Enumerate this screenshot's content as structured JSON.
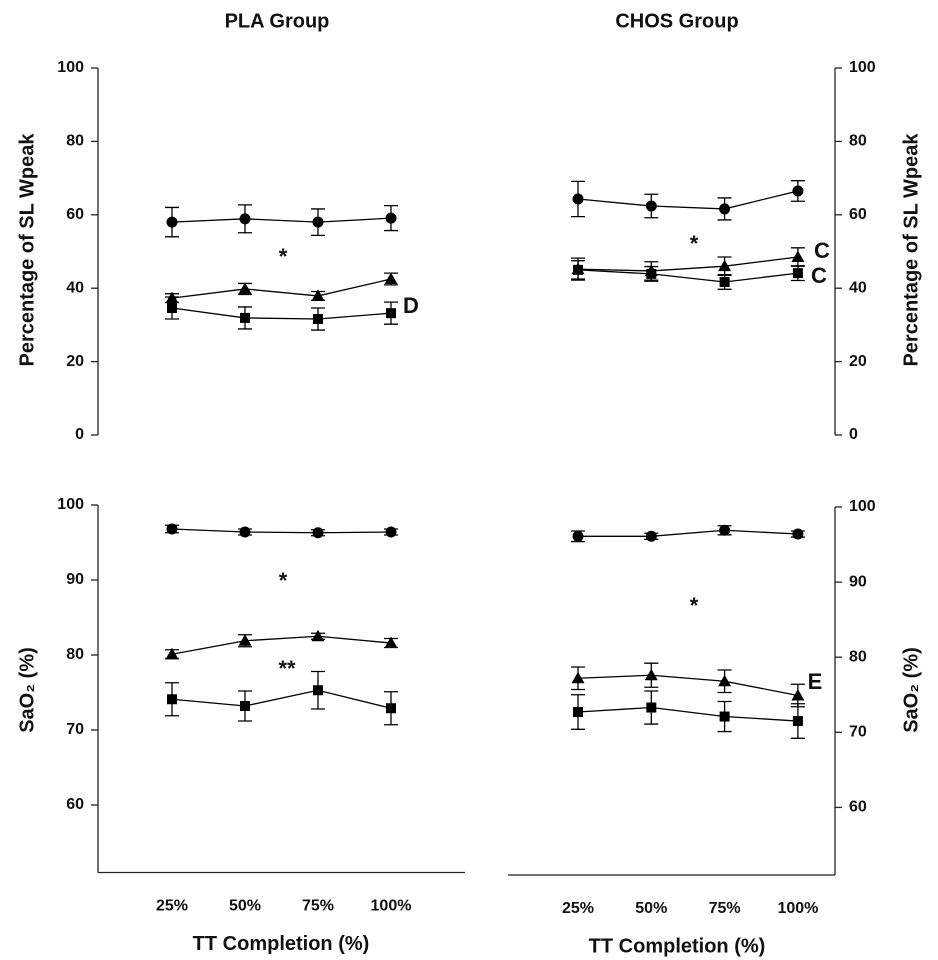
{
  "chart_data": [
    {
      "type": "line",
      "title": "PLA Group",
      "y_label": "Percentage of SL Wpeak",
      "y_axis": "left",
      "ylim": [
        0,
        100
      ],
      "yticks": [
        0,
        20,
        40,
        60,
        80,
        100
      ],
      "categories": [
        null,
        null,
        null,
        null
      ],
      "color": "#000000",
      "series": [
        {
          "marker": "circle",
          "values": [
            58,
            58.9,
            58,
            59.1
          ],
          "errors": [
            4,
            3.8,
            3.6,
            3.4
          ]
        },
        {
          "marker": "triangle",
          "values": [
            37.3,
            39.8,
            37.9,
            42.5
          ],
          "errors": [
            1.2,
            1.5,
            1.2,
            1.6
          ]
        },
        {
          "marker": "square",
          "values": [
            34.6,
            31.9,
            31.6,
            33.2
          ],
          "errors": [
            3,
            3,
            3,
            3
          ]
        }
      ],
      "annotations": [
        "*",
        "D"
      ]
    },
    {
      "type": "line",
      "title": "CHOS Group",
      "y_label": "Percentage of SL Wpeak",
      "y_axis": "right",
      "ylim": [
        0,
        100
      ],
      "yticks": [
        0,
        20,
        40,
        60,
        80,
        100
      ],
      "categories": [
        null,
        null,
        null,
        null
      ],
      "color": "#000000",
      "series": [
        {
          "marker": "circle",
          "values": [
            64.3,
            62.4,
            61.6,
            66.5
          ],
          "errors": [
            4.8,
            3.2,
            3,
            2.8
          ]
        },
        {
          "marker": "triangle",
          "values": [
            45.2,
            44.7,
            46,
            48.5
          ],
          "errors": [
            3,
            2.5,
            2.5,
            2.5
          ]
        },
        {
          "marker": "square",
          "values": [
            45,
            43.9,
            41.7,
            44.1
          ],
          "errors": [
            2.5,
            2,
            2,
            2
          ]
        }
      ],
      "annotations": [
        "*",
        "C",
        "C"
      ]
    },
    {
      "type": "line",
      "y_label": "SaO₂ (%)",
      "x_label": "TT Completion (%)",
      "y_axis": "left",
      "ylim": [
        51,
        100
      ],
      "yticks": [
        60,
        70,
        80,
        90,
        100
      ],
      "categories": [
        "25%",
        "50%",
        "75%",
        "100%"
      ],
      "color": "#000000",
      "series": [
        {
          "marker": "circle",
          "values": [
            96.8,
            96.4,
            96.3,
            96.4
          ],
          "errors": [
            0.5,
            0.4,
            0.4,
            0.4
          ]
        },
        {
          "marker": "triangle",
          "values": [
            80.1,
            81.9,
            82.5,
            81.6
          ],
          "errors": [
            0.6,
            0.8,
            0.4,
            0.6
          ]
        },
        {
          "marker": "square",
          "values": [
            74.1,
            73.2,
            75.3,
            72.9
          ],
          "errors": [
            2.2,
            2,
            2.5,
            2.2
          ]
        }
      ],
      "annotations": [
        "*",
        "**"
      ]
    },
    {
      "type": "line",
      "x_label": "TT Completion (%)",
      "y_label": "SaO₂ (%)",
      "y_axis": "right",
      "ylim": [
        51,
        100
      ],
      "yticks": [
        60,
        70,
        80,
        90,
        100
      ],
      "categories": [
        "25%",
        "50%",
        "75%",
        "100%"
      ],
      "color": "#000000",
      "series": [
        {
          "marker": "circle",
          "values": [
            96.1,
            96.1,
            96.9,
            96.4
          ],
          "errors": [
            0.7,
            0.4,
            0.6,
            0.4
          ]
        },
        {
          "marker": "triangle",
          "values": [
            77.2,
            77.6,
            76.8,
            74.9
          ],
          "errors": [
            1.5,
            1.6,
            1.5,
            1.5
          ]
        },
        {
          "marker": "square",
          "values": [
            72.7,
            73.3,
            72.1,
            71.5
          ],
          "errors": [
            2.3,
            2.2,
            2,
            2.3
          ]
        }
      ],
      "annotations": [
        "*",
        "E"
      ]
    }
  ]
}
